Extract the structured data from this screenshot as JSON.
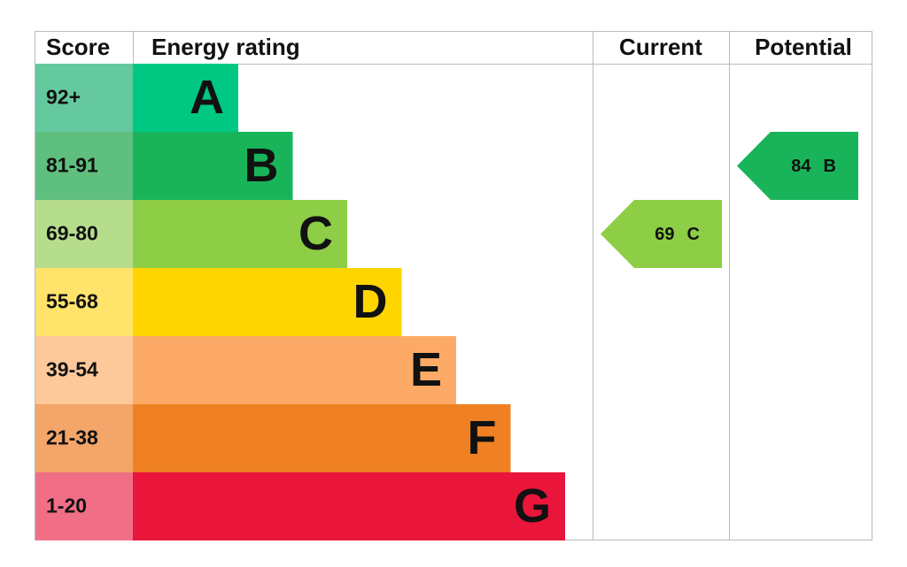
{
  "chart_data": {
    "type": "epc",
    "headers": [
      "Score",
      "Energy rating",
      "Current",
      "Potential"
    ],
    "bands": [
      {
        "score": "92+",
        "letter": "A",
        "color": "#00c781",
        "score_color": "#65c9a0"
      },
      {
        "score": "81-91",
        "letter": "B",
        "color": "#19b459",
        "score_color": "#5fbf7f"
      },
      {
        "score": "69-80",
        "letter": "C",
        "color": "#8dce46",
        "score_color": "#b6dd8c"
      },
      {
        "score": "55-68",
        "letter": "D",
        "color": "#ffd500",
        "score_color": "#ffe36b"
      },
      {
        "score": "39-54",
        "letter": "E",
        "color": "#fcaa65",
        "score_color": "#fdc89a"
      },
      {
        "score": "21-38",
        "letter": "F",
        "color": "#ef8023",
        "score_color": "#f3a56a"
      },
      {
        "score": "1-20",
        "letter": "G",
        "color": "#e9153b",
        "score_color": "#f06f87"
      }
    ],
    "current": {
      "value": 69,
      "rating": "C"
    },
    "potential": {
      "value": 84,
      "rating": "B"
    }
  }
}
